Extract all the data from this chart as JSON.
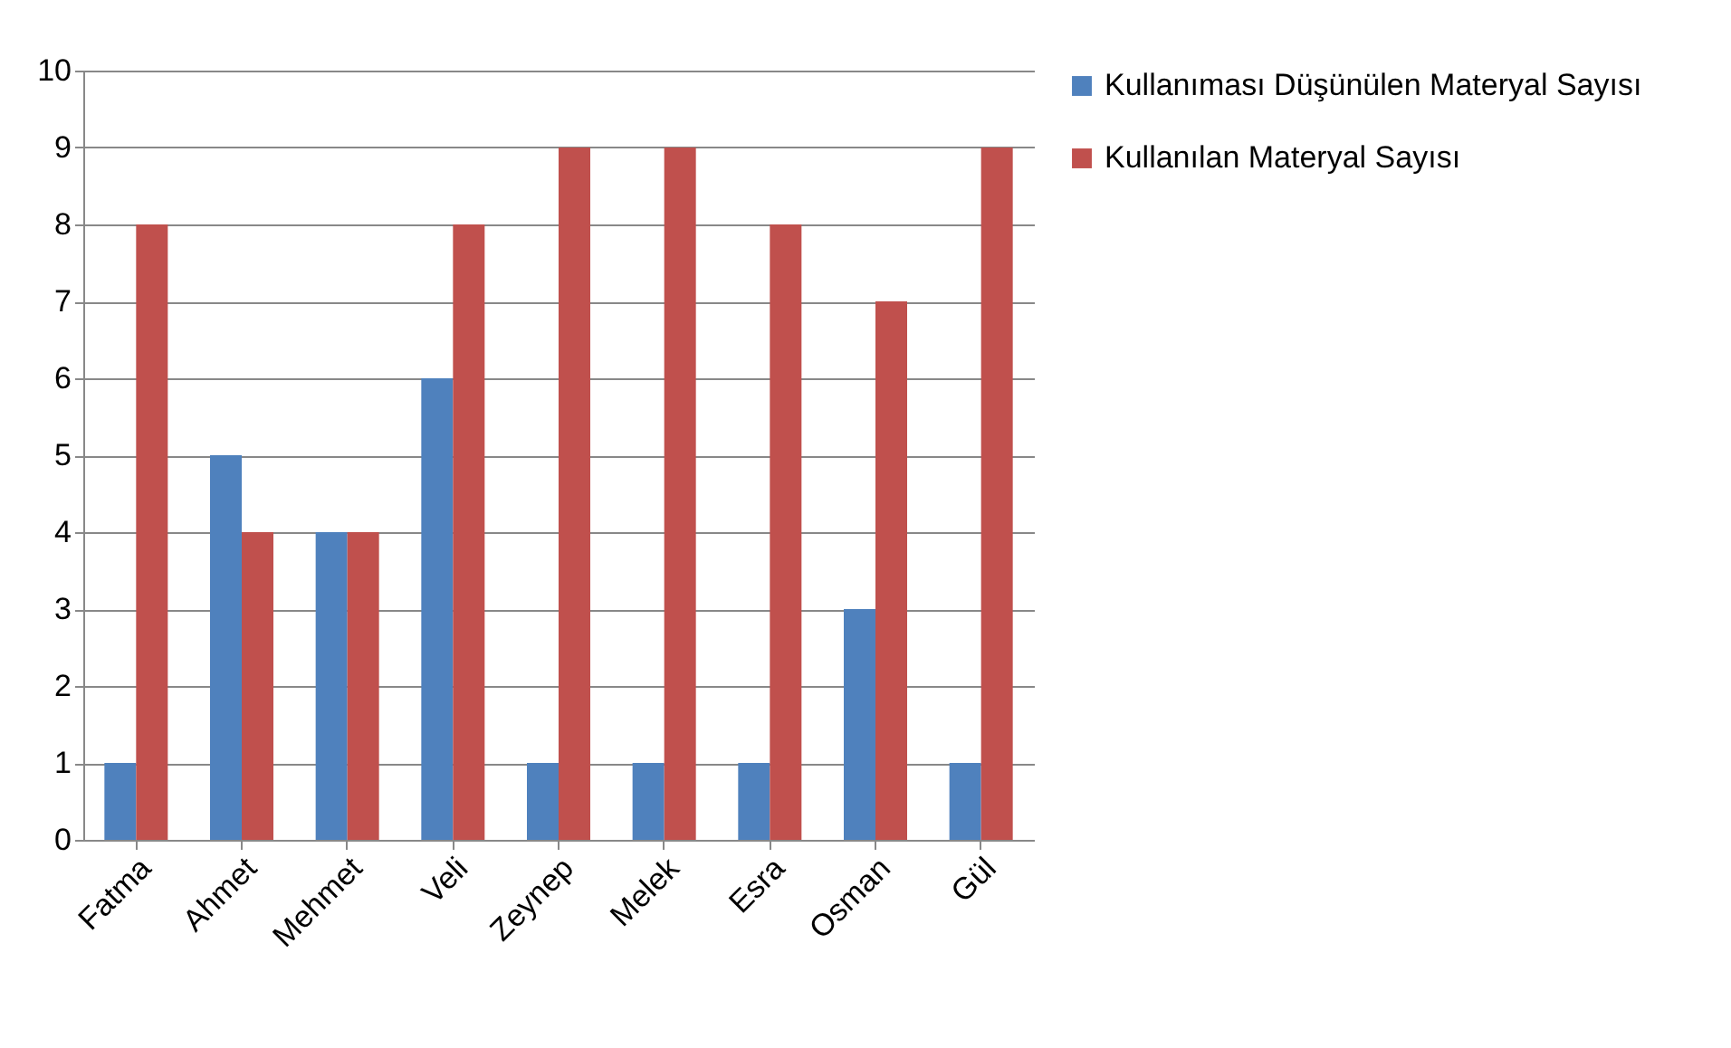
{
  "chart_data": {
    "type": "bar",
    "categories": [
      "Fatma",
      "Ahmet",
      "Mehmet",
      "Veli",
      "Zeynep",
      "Melek",
      "Esra",
      "Osman",
      "Gül"
    ],
    "series": [
      {
        "name": "Kullanıması Düşünülen Materyal Sayısı",
        "color": "#4f81bd",
        "values": [
          1,
          5,
          4,
          6,
          1,
          1,
          1,
          3,
          1
        ]
      },
      {
        "name": "Kullanılan Materyal Sayısı",
        "color": "#c0504d",
        "values": [
          8,
          4,
          4,
          8,
          9,
          9,
          8,
          7,
          9
        ]
      }
    ],
    "ylim": [
      0,
      10
    ],
    "yticks": [
      0,
      1,
      2,
      3,
      4,
      5,
      6,
      7,
      8,
      9,
      10
    ],
    "grid": "y",
    "legend": "right"
  }
}
